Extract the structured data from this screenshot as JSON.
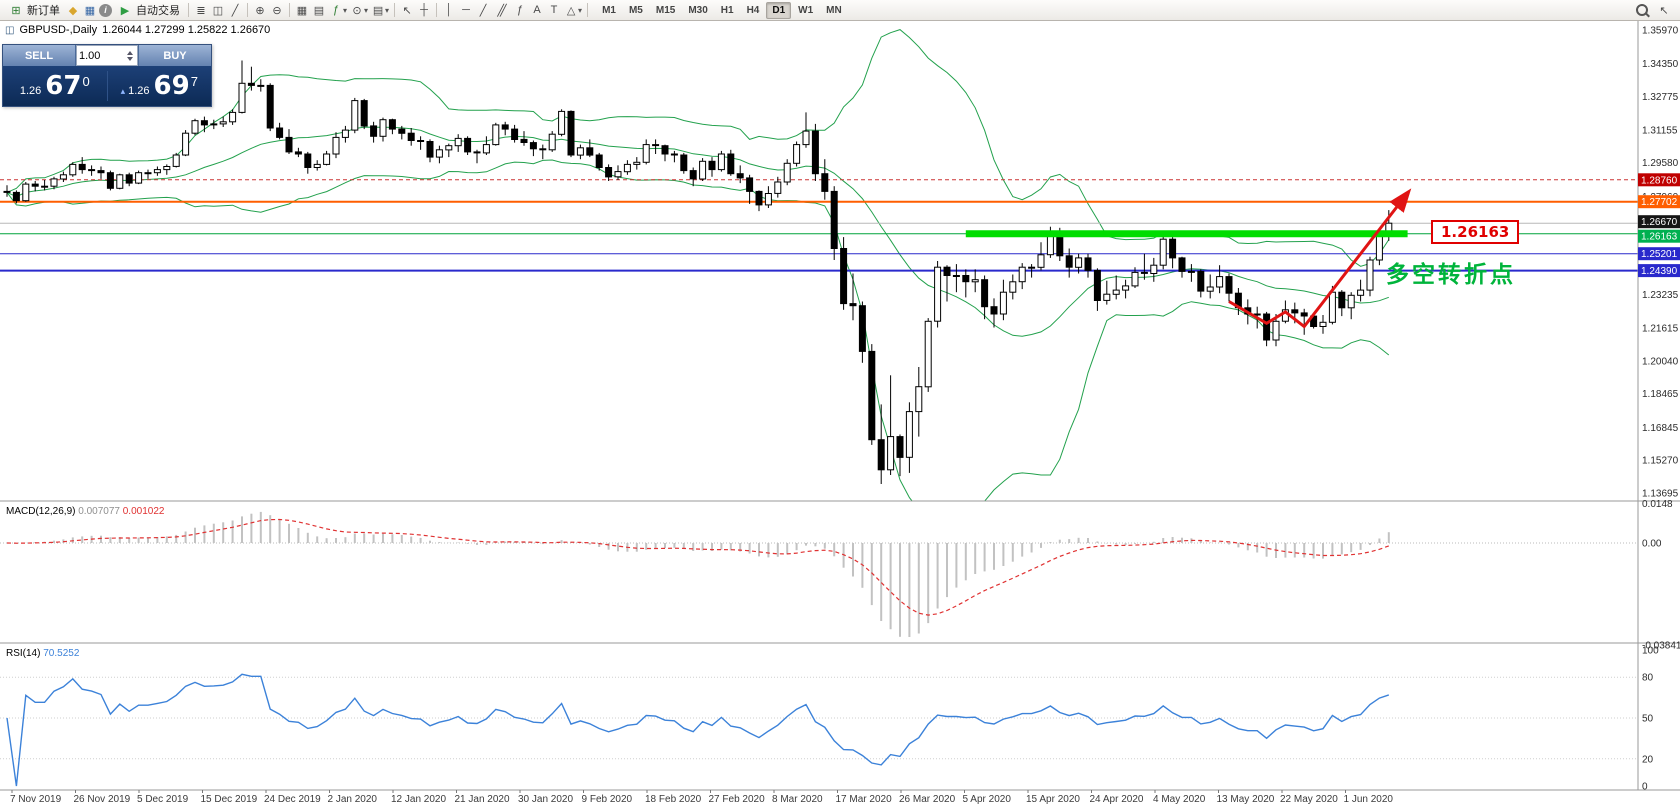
{
  "toolbar": {
    "new_order_label": "新订单",
    "autotrade_label": "自动交易",
    "timeframes": [
      "M1",
      "M5",
      "M15",
      "M30",
      "H1",
      "H4",
      "D1",
      "W1",
      "MN"
    ],
    "active_timeframe": "D1"
  },
  "trade_panel": {
    "sell_label": "SELL",
    "buy_label": "BUY",
    "volume": "1.00",
    "sell_price_small": "1.26",
    "sell_price_big": "67",
    "sell_price_sup": "0",
    "buy_price_small": "1.26",
    "buy_price_big": "69",
    "buy_price_sup": "7"
  },
  "chart": {
    "title": "GBPUSD-,Daily",
    "ohlc": "1.26044 1.27299 1.25822 1.26670",
    "level_label": "1.26163",
    "annotation": {
      "text": "多空转折点",
      "color": "#00b43b"
    },
    "price_ticks": [
      {
        "label": "1.35970",
        "value": 1.3597
      },
      {
        "label": "1.34350",
        "value": 1.3435
      },
      {
        "label": "1.32775",
        "value": 1.32775
      },
      {
        "label": "1.31155",
        "value": 1.31155
      },
      {
        "label": "1.29580",
        "value": 1.2958
      },
      {
        "label": "1.27960",
        "value": 1.2796
      },
      {
        "label": "1.23235",
        "value": 1.23235
      },
      {
        "label": "1.21615",
        "value": 1.21615
      },
      {
        "label": "1.20040",
        "value": 1.2004
      },
      {
        "label": "1.18465",
        "value": 1.18465
      },
      {
        "label": "1.16845",
        "value": 1.16845
      },
      {
        "label": "1.15270",
        "value": 1.1527
      },
      {
        "label": "1.13695",
        "value": 1.13695
      }
    ],
    "macd_label": "MACD(12,26,9)",
    "macd_value": "0.007077",
    "macd_signal": "0.001022",
    "macd_axis": [
      {
        "label": "0.0148",
        "value": 0.0148
      },
      {
        "label": "0.00",
        "value": 0
      },
      {
        "label": "-0.038415",
        "value": -0.038415
      }
    ],
    "rsi_label": "RSI(14)",
    "rsi_value": "70.5252",
    "rsi_axis": [
      {
        "label": "100",
        "value": 100
      },
      {
        "label": "80",
        "value": 80
      },
      {
        "label": "50",
        "value": 50
      },
      {
        "label": "20",
        "value": 20
      },
      {
        "label": "0",
        "value": 0
      }
    ],
    "dates": [
      "7 Nov 2019",
      "26 Nov 2019",
      "5 Dec 2019",
      "15 Dec 2019",
      "24 Dec 2019",
      "2 Jan 2020",
      "12 Jan 2020",
      "21 Jan 2020",
      "30 Jan 2020",
      "9 Feb 2020",
      "18 Feb 2020",
      "27 Feb 2020",
      "8 Mar 2020",
      "17 Mar 2020",
      "26 Mar 2020",
      "5 Apr 2020",
      "15 Apr 2020",
      "24 Apr 2020",
      "4 May 2020",
      "13 May 2020",
      "22 May 2020",
      "1 Jun 2020"
    ]
  },
  "chart_data": {
    "type": "candlestick",
    "symbol": "GBPUSD",
    "timeframe": "Daily",
    "colors": {
      "bands": "#23a14d",
      "bull": "#ffffff",
      "bear": "#000000",
      "macd_hist": "#c2c2c2",
      "macd_signal": "#e03232",
      "rsi_line": "#3c82d9"
    },
    "indicators": {
      "bollinger": {
        "period": 20,
        "deviation": 2
      },
      "macd": {
        "fast": 12,
        "slow": 26,
        "signal": 9
      },
      "rsi": {
        "period": 14
      }
    },
    "levels": [
      {
        "label": "1.28760",
        "value": 1.2876,
        "color": "#cc3333",
        "dash": "4,3",
        "width": 1,
        "tag": "#c00000"
      },
      {
        "label": "1.27702",
        "value": 1.27702,
        "color": "#ff5e00",
        "width": 2,
        "tag": "#ff5e00"
      },
      {
        "label": "1.26670",
        "value": 1.2667,
        "color": "#b8b8b8",
        "width": 1,
        "tag": "#151515"
      },
      {
        "label": "1.26163",
        "value": 1.26163,
        "color": "#00a33c",
        "width": 1,
        "tag": "#00b050"
      },
      {
        "label": "1.25201",
        "value": 1.25201,
        "color": "#2929cc",
        "width": 1,
        "tag": "#2929cc"
      },
      {
        "label": "1.24390",
        "value": 1.2439,
        "color": "#2929cc",
        "width": 2,
        "tag": "#2929cc"
      }
    ],
    "highlight_segment": {
      "value": 1.26163,
      "from_bar": 102,
      "to_bar": 149,
      "color": "#00dd00",
      "width": 7
    },
    "trend_arrow": {
      "color": "#e01414",
      "points": [
        [
          130,
          1.229
        ],
        [
          134,
          1.2185
        ],
        [
          136,
          1.224
        ],
        [
          138,
          1.217
        ],
        [
          149,
          1.2812
        ]
      ]
    },
    "ohlc": [
      [
        1.282,
        1.285,
        1.2794,
        1.2815
      ],
      [
        1.2815,
        1.2825,
        1.2762,
        1.2775
      ],
      [
        1.2775,
        1.2865,
        1.277,
        1.2855
      ],
      [
        1.2855,
        1.287,
        1.282,
        1.2845
      ],
      [
        1.2845,
        1.2875,
        1.2825,
        1.2845
      ],
      [
        1.2845,
        1.289,
        1.283,
        1.288
      ],
      [
        1.288,
        1.2915,
        1.2865,
        1.29
      ],
      [
        1.29,
        1.296,
        1.289,
        1.295
      ],
      [
        1.295,
        1.2985,
        1.2905,
        1.2925
      ],
      [
        1.2925,
        1.2945,
        1.2895,
        1.292
      ],
      [
        1.292,
        1.294,
        1.288,
        1.291
      ],
      [
        1.291,
        1.292,
        1.2825,
        1.2835
      ],
      [
        1.2835,
        1.2905,
        1.283,
        1.29
      ],
      [
        1.29,
        1.291,
        1.2845,
        1.286
      ],
      [
        1.286,
        1.292,
        1.2855,
        1.291
      ],
      [
        1.291,
        1.2925,
        1.288,
        1.291
      ],
      [
        1.291,
        1.294,
        1.2895,
        1.2925
      ],
      [
        1.2925,
        1.295,
        1.29,
        1.294
      ],
      [
        1.294,
        1.3005,
        1.2935,
        1.2995
      ],
      [
        1.2995,
        1.3115,
        1.299,
        1.31
      ],
      [
        1.31,
        1.317,
        1.309,
        1.316
      ],
      [
        1.316,
        1.318,
        1.3105,
        1.314
      ],
      [
        1.314,
        1.3165,
        1.312,
        1.3145
      ],
      [
        1.3145,
        1.318,
        1.313,
        1.3155
      ],
      [
        1.3155,
        1.3215,
        1.314,
        1.32
      ],
      [
        1.32,
        1.345,
        1.3195,
        1.334
      ],
      [
        1.334,
        1.342,
        1.3305,
        1.333
      ],
      [
        1.333,
        1.336,
        1.33,
        1.333
      ],
      [
        1.333,
        1.334,
        1.311,
        1.3125
      ],
      [
        1.3125,
        1.315,
        1.307,
        1.308
      ],
      [
        1.308,
        1.312,
        1.3,
        1.301
      ],
      [
        1.301,
        1.303,
        1.2985,
        1.3
      ],
      [
        1.3,
        1.301,
        1.2905,
        1.2935
      ],
      [
        1.2935,
        1.297,
        1.292,
        1.295
      ],
      [
        1.295,
        1.3015,
        1.2945,
        1.3
      ],
      [
        1.3,
        1.3105,
        1.298,
        1.308
      ],
      [
        1.308,
        1.3135,
        1.3055,
        1.3115
      ],
      [
        1.3115,
        1.327,
        1.31,
        1.3257
      ],
      [
        1.3257,
        1.3265,
        1.312,
        1.3135
      ],
      [
        1.3135,
        1.3155,
        1.3055,
        1.3085
      ],
      [
        1.3085,
        1.3175,
        1.306,
        1.3165
      ],
      [
        1.3165,
        1.317,
        1.3095,
        1.312
      ],
      [
        1.312,
        1.3135,
        1.307,
        1.31
      ],
      [
        1.31,
        1.3125,
        1.304,
        1.3065
      ],
      [
        1.3065,
        1.3085,
        1.302,
        1.306
      ],
      [
        1.306,
        1.307,
        1.296,
        1.2985
      ],
      [
        1.2985,
        1.304,
        1.2955,
        1.302
      ],
      [
        1.302,
        1.305,
        1.2985,
        1.304
      ],
      [
        1.304,
        1.3095,
        1.301,
        1.3075
      ],
      [
        1.3075,
        1.3085,
        1.2995,
        1.301
      ],
      [
        1.301,
        1.302,
        1.2955,
        1.3005
      ],
      [
        1.3005,
        1.3085,
        1.2995,
        1.3045
      ],
      [
        1.3045,
        1.315,
        1.304,
        1.314
      ],
      [
        1.314,
        1.3155,
        1.309,
        1.312
      ],
      [
        1.312,
        1.314,
        1.3055,
        1.307
      ],
      [
        1.307,
        1.311,
        1.304,
        1.3055
      ],
      [
        1.3055,
        1.3065,
        1.299,
        1.3025
      ],
      [
        1.3025,
        1.3045,
        1.2975,
        1.302
      ],
      [
        1.302,
        1.311,
        1.301,
        1.3095
      ],
      [
        1.3095,
        1.3215,
        1.3085,
        1.3205
      ],
      [
        1.3205,
        1.321,
        1.2985,
        1.2995
      ],
      [
        1.2995,
        1.3045,
        1.2975,
        1.303
      ],
      [
        1.303,
        1.307,
        1.2985,
        1.2995
      ],
      [
        1.2995,
        1.3005,
        1.292,
        1.2935
      ],
      [
        1.2935,
        1.295,
        1.287,
        1.289
      ],
      [
        1.289,
        1.2945,
        1.2875,
        1.2915
      ],
      [
        1.2915,
        1.297,
        1.29,
        1.295
      ],
      [
        1.295,
        1.2985,
        1.2925,
        1.296
      ],
      [
        1.296,
        1.307,
        1.295,
        1.3045
      ],
      [
        1.3045,
        1.307,
        1.3,
        1.304
      ],
      [
        1.304,
        1.3045,
        1.2965,
        1.3
      ],
      [
        1.3,
        1.3015,
        1.296,
        1.2995
      ],
      [
        1.2995,
        1.3005,
        1.2905,
        1.292
      ],
      [
        1.292,
        1.2935,
        1.2845,
        1.288
      ],
      [
        1.288,
        1.298,
        1.287,
        1.2965
      ],
      [
        1.2965,
        1.2985,
        1.289,
        1.2925
      ],
      [
        1.2925,
        1.3015,
        1.2915,
        1.3
      ],
      [
        1.3,
        1.302,
        1.2895,
        1.2905
      ],
      [
        1.2905,
        1.2945,
        1.286,
        1.2885
      ],
      [
        1.2885,
        1.29,
        1.276,
        1.282
      ],
      [
        1.282,
        1.2825,
        1.2725,
        1.2755
      ],
      [
        1.2755,
        1.2845,
        1.274,
        1.281
      ],
      [
        1.281,
        1.289,
        1.279,
        1.2865
      ],
      [
        1.2865,
        1.2975,
        1.285,
        1.2955
      ],
      [
        1.2955,
        1.306,
        1.294,
        1.3045
      ],
      [
        1.3045,
        1.32,
        1.303,
        1.311
      ],
      [
        1.311,
        1.3145,
        1.287,
        1.2905
      ],
      [
        1.2905,
        1.2975,
        1.278,
        1.282
      ],
      [
        1.282,
        1.2845,
        1.249,
        1.2545
      ],
      [
        1.2545,
        1.26,
        1.225,
        1.228
      ],
      [
        1.228,
        1.2425,
        1.22,
        1.227
      ],
      [
        1.227,
        1.229,
        1.1995,
        1.205
      ],
      [
        1.205,
        1.2085,
        1.16,
        1.1625
      ],
      [
        1.1625,
        1.1795,
        1.1412,
        1.148
      ],
      [
        1.148,
        1.1935,
        1.1455,
        1.164
      ],
      [
        1.164,
        1.165,
        1.145,
        1.154
      ],
      [
        1.154,
        1.1805,
        1.1465,
        1.176
      ],
      [
        1.176,
        1.1975,
        1.164,
        1.188
      ],
      [
        1.188,
        1.221,
        1.1855,
        1.2195
      ],
      [
        1.2195,
        1.2485,
        1.2165,
        1.2455
      ],
      [
        1.2455,
        1.2465,
        1.229,
        1.2415
      ],
      [
        1.2415,
        1.247,
        1.2335,
        1.2415
      ],
      [
        1.2415,
        1.2445,
        1.231,
        1.2385
      ],
      [
        1.2385,
        1.2445,
        1.2335,
        1.2395
      ],
      [
        1.2395,
        1.2415,
        1.2205,
        1.2265
      ],
      [
        1.2265,
        1.2305,
        1.2165,
        1.223
      ],
      [
        1.223,
        1.2395,
        1.22,
        1.2335
      ],
      [
        1.2335,
        1.242,
        1.23,
        1.2385
      ],
      [
        1.2385,
        1.2475,
        1.235,
        1.2455
      ],
      [
        1.2455,
        1.247,
        1.2405,
        1.2455
      ],
      [
        1.2455,
        1.2575,
        1.244,
        1.2515
      ],
      [
        1.2515,
        1.265,
        1.25,
        1.262
      ],
      [
        1.262,
        1.2645,
        1.2485,
        1.251
      ],
      [
        1.251,
        1.2545,
        1.2405,
        1.2455
      ],
      [
        1.2455,
        1.252,
        1.2425,
        1.25
      ],
      [
        1.25,
        1.252,
        1.2405,
        1.244
      ],
      [
        1.244,
        1.245,
        1.2245,
        1.2295
      ],
      [
        1.2295,
        1.239,
        1.2275,
        1.2325
      ],
      [
        1.2325,
        1.2415,
        1.23,
        1.2345
      ],
      [
        1.2345,
        1.2395,
        1.2305,
        1.2365
      ],
      [
        1.2365,
        1.2455,
        1.2355,
        1.243
      ],
      [
        1.243,
        1.252,
        1.2395,
        1.2425
      ],
      [
        1.2425,
        1.25,
        1.2385,
        1.2465
      ],
      [
        1.2465,
        1.2615,
        1.2445,
        1.259
      ],
      [
        1.259,
        1.26,
        1.245,
        1.25
      ],
      [
        1.25,
        1.2505,
        1.2405,
        1.2435
      ],
      [
        1.2435,
        1.247,
        1.2385,
        1.2435
      ],
      [
        1.2435,
        1.2445,
        1.231,
        1.234
      ],
      [
        1.234,
        1.242,
        1.2305,
        1.236
      ],
      [
        1.236,
        1.2465,
        1.233,
        1.241
      ],
      [
        1.241,
        1.2425,
        1.229,
        1.233
      ],
      [
        1.233,
        1.2355,
        1.2225,
        1.226
      ],
      [
        1.226,
        1.23,
        1.218,
        1.223
      ],
      [
        1.223,
        1.2265,
        1.216,
        1.223
      ],
      [
        1.223,
        1.224,
        1.2075,
        1.2105
      ],
      [
        1.2105,
        1.223,
        1.2075,
        1.2195
      ],
      [
        1.2195,
        1.2295,
        1.2185,
        1.225
      ],
      [
        1.225,
        1.2285,
        1.2185,
        1.2235
      ],
      [
        1.2235,
        1.2255,
        1.213,
        1.222
      ],
      [
        1.222,
        1.2235,
        1.216,
        1.217
      ],
      [
        1.217,
        1.2225,
        1.2135,
        1.219
      ],
      [
        1.219,
        1.2365,
        1.218,
        1.2335
      ],
      [
        1.2335,
        1.2345,
        1.222,
        1.226
      ],
      [
        1.226,
        1.2335,
        1.2205,
        1.232
      ],
      [
        1.232,
        1.2395,
        1.229,
        1.2345
      ],
      [
        1.2345,
        1.2505,
        1.2315,
        1.249
      ],
      [
        1.249,
        1.262,
        1.2465,
        1.2604
      ],
      [
        1.26044,
        1.27299,
        1.25822,
        1.2667
      ]
    ]
  }
}
